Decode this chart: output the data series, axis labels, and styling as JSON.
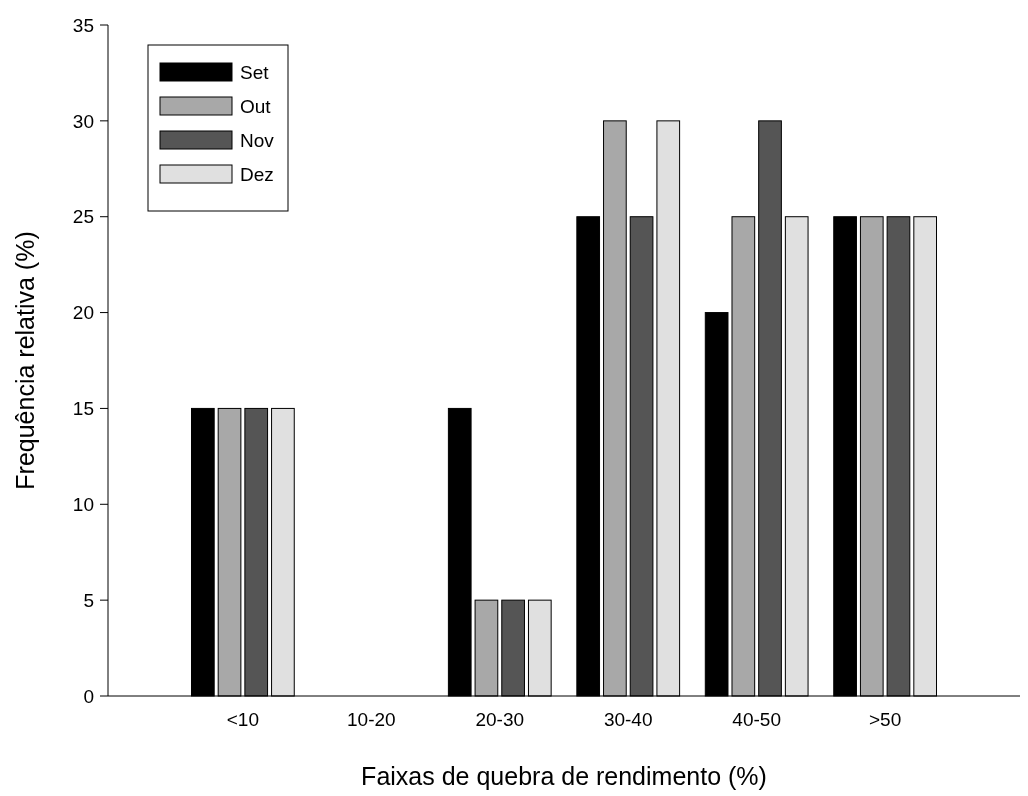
{
  "chart_data": {
    "type": "bar",
    "xlabel": "Faixas de quebra de rendimento (%)",
    "ylabel": "Frequência relativa (%)",
    "categories": [
      "<10",
      "10-20",
      "20-30",
      "30-40",
      "40-50",
      ">50"
    ],
    "series": [
      {
        "name": "Set",
        "color": "#000000",
        "values": [
          15,
          0,
          15,
          25,
          20,
          25
        ]
      },
      {
        "name": "Out",
        "color": "#a8a8a8",
        "values": [
          15,
          0,
          5,
          30,
          25,
          25
        ]
      },
      {
        "name": "Nov",
        "color": "#555555",
        "values": [
          15,
          0,
          5,
          25,
          30,
          25
        ]
      },
      {
        "name": "Dez",
        "color": "#e0e0e0",
        "values": [
          15,
          0,
          5,
          30,
          25,
          25
        ]
      }
    ],
    "ylim": [
      0,
      35
    ],
    "yticks": [
      0,
      5,
      10,
      15,
      20,
      25,
      30,
      35
    ],
    "legend": "top left"
  }
}
